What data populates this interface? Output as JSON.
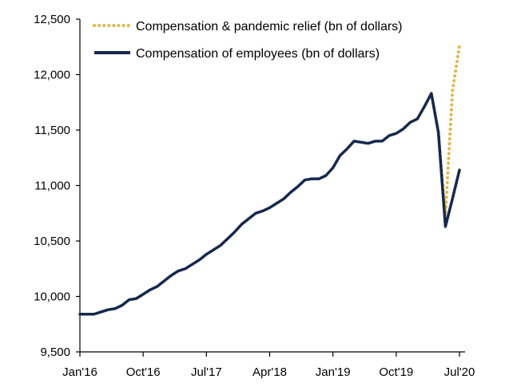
{
  "chart_data": {
    "type": "line",
    "title": "",
    "xlabel": "",
    "ylabel": "",
    "ylim": [
      9500,
      12500
    ],
    "yticks": [
      "12,500",
      "12,000",
      "11,500",
      "11,000",
      "10,500",
      "10,000",
      "9,500"
    ],
    "yticks_values": [
      12500,
      12000,
      11500,
      11000,
      10500,
      10000,
      9500
    ],
    "xticks": [
      "Jan'16",
      "Oct'16",
      "Jul'17",
      "Apr'18",
      "Jan'19",
      "Oct'19",
      "Jul'20"
    ],
    "xticks_index": [
      0,
      9,
      18,
      27,
      36,
      45,
      54
    ],
    "x_start": "2016-01",
    "legend_position": "top-center",
    "grid": false,
    "series": [
      {
        "name": "Compensation & pandemic relief (bn of dollars)",
        "style": "dotted",
        "color": "#e0b84a",
        "start_index": 50,
        "values": [
          11830,
          11480,
          10730,
          11850,
          12260
        ]
      },
      {
        "name": "Compensation of employees (bn of dollars)",
        "style": "solid",
        "color": "#17284e",
        "start_index": 0,
        "values": [
          9840,
          9840,
          9840,
          9860,
          9880,
          9890,
          9920,
          9970,
          9980,
          10020,
          10060,
          10090,
          10140,
          10190,
          10230,
          10250,
          10290,
          10330,
          10380,
          10420,
          10460,
          10520,
          10580,
          10650,
          10700,
          10750,
          10770,
          10800,
          10840,
          10880,
          10940,
          10990,
          11050,
          11060,
          11060,
          11090,
          11160,
          11270,
          11330,
          11400,
          11390,
          11380,
          11400,
          11400,
          11450,
          11470,
          11510,
          11570,
          11600,
          11710,
          11830,
          11480,
          10630,
          10880,
          11140
        ]
      }
    ]
  }
}
